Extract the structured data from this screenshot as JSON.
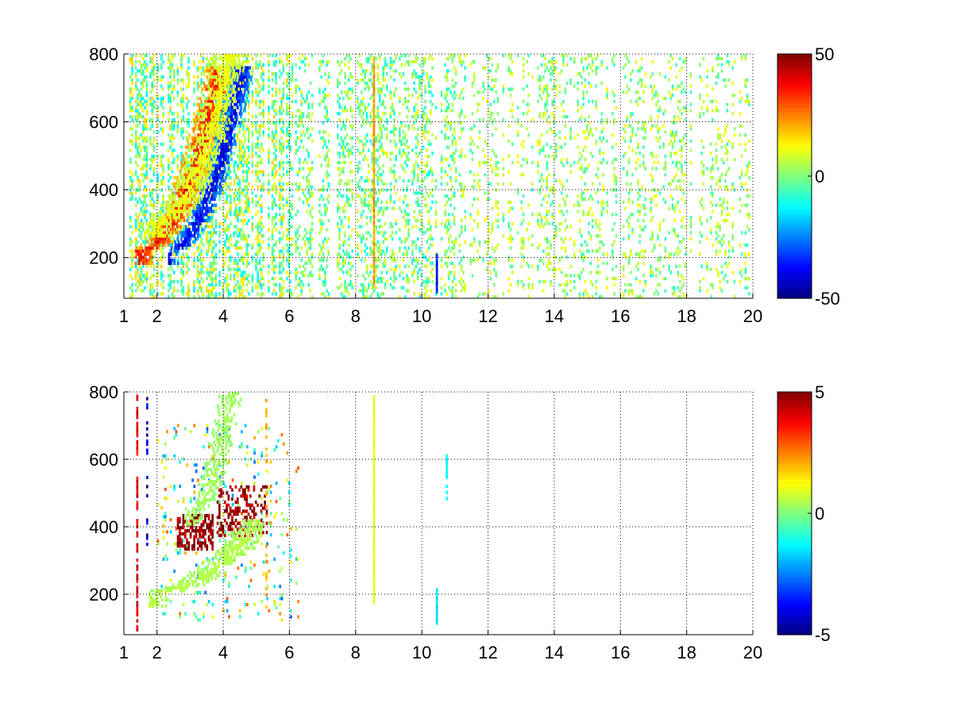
{
  "chart_data": [
    {
      "type": "heatmap",
      "title": "",
      "xlabel": "",
      "ylabel": "",
      "xlim": [
        1,
        20
      ],
      "ylim": [
        80,
        800
      ],
      "xticks": [
        1,
        2,
        4,
        6,
        8,
        10,
        12,
        14,
        16,
        18,
        20
      ],
      "yticks": [
        200,
        400,
        600,
        800
      ],
      "grid": "dotted",
      "colormap": "jet",
      "clim": [
        -50,
        50
      ],
      "colorbar_ticks": [
        50,
        0,
        -50
      ],
      "missing_color": "#ffffff",
      "features": [
        {
          "kind": "band",
          "x_start": 1.5,
          "y_start": 215,
          "x_end": 3.8,
          "y_end": 720,
          "width": 0.45,
          "value": 38,
          "x_min": 1.3,
          "x_max": 5.5,
          "density": 0.95
        },
        {
          "kind": "band",
          "x_start": 2.3,
          "y_start": 215,
          "x_end": 4.5,
          "y_end": 720,
          "width": 0.35,
          "value": -42,
          "x_min": 2.3,
          "x_max": 5.8,
          "density": 0.95
        },
        {
          "kind": "band",
          "x_start": 2.0,
          "y_start": 300,
          "x_end": 4.2,
          "y_end": 800,
          "width": 0.5,
          "value": 12,
          "x_min": 1.5,
          "x_max": 6.0,
          "density": 0.75
        },
        {
          "kind": "vline",
          "x": 8.55,
          "y_min": 110,
          "y_max": 800,
          "value": 22,
          "density": 1.0
        },
        {
          "kind": "vline",
          "x": 10.45,
          "y_min": 95,
          "y_max": 210,
          "value": -35,
          "density": 1.0
        }
      ],
      "noise": [
        {
          "x_min": 1.0,
          "x_max": 6.0,
          "y_min": 80,
          "y_max": 800,
          "density": 0.45,
          "vmin": -15,
          "vmax": 18
        },
        {
          "x_min": 6.0,
          "x_max": 11.0,
          "y_min": 80,
          "y_max": 800,
          "density": 0.28,
          "vmin": -12,
          "vmax": 12
        },
        {
          "x_min": 11.0,
          "x_max": 20.0,
          "y_min": 80,
          "y_max": 800,
          "density": 0.18,
          "vmin": -8,
          "vmax": 14
        }
      ]
    },
    {
      "type": "heatmap",
      "title": "",
      "xlabel": "",
      "ylabel": "",
      "xlim": [
        1,
        20
      ],
      "ylim": [
        80,
        800
      ],
      "xticks": [
        1,
        2,
        4,
        6,
        8,
        10,
        12,
        14,
        16,
        18,
        20
      ],
      "yticks": [
        200,
        400,
        600,
        800
      ],
      "grid": "dotted",
      "colormap": "jet",
      "clim": [
        -5,
        5
      ],
      "colorbar_ticks": [
        5,
        0,
        -5
      ],
      "missing_color": "#ffffff",
      "features": [
        {
          "kind": "blob",
          "x_min": 2.6,
          "x_max": 3.7,
          "y_min": 330,
          "y_max": 430,
          "value": 5,
          "density": 0.55
        },
        {
          "kind": "blob",
          "x_min": 3.8,
          "x_max": 5.3,
          "y_min": 370,
          "y_max": 520,
          "value": 5,
          "density": 0.35
        },
        {
          "kind": "band",
          "x_start": 1.8,
          "y_start": 200,
          "x_end": 4.8,
          "y_end": 380,
          "width": 0.55,
          "value": 0.6,
          "x_min": 1.7,
          "x_max": 5.2,
          "density": 0.8
        },
        {
          "kind": "band",
          "x_start": 3.0,
          "y_start": 440,
          "x_end": 4.2,
          "y_end": 780,
          "width": 0.35,
          "value": 0.4,
          "x_min": 2.8,
          "x_max": 5.8,
          "density": 0.6
        },
        {
          "kind": "vline",
          "x": 8.55,
          "y_min": 170,
          "y_max": 790,
          "value": 1,
          "density": 1.0
        },
        {
          "kind": "vline",
          "x": 10.45,
          "y_min": 110,
          "y_max": 210,
          "value": -1.5,
          "density": 1.0
        },
        {
          "kind": "vline",
          "x": 10.75,
          "y_min": 480,
          "y_max": 610,
          "value": -1.2,
          "density": 0.6
        },
        {
          "kind": "vline",
          "x": 1.4,
          "y_min": 90,
          "y_max": 800,
          "value": 4,
          "density": 0.6
        },
        {
          "kind": "vline",
          "x": 1.7,
          "y_min": 290,
          "y_max": 780,
          "value": -4,
          "density": 0.35
        },
        {
          "kind": "vline",
          "x": 5.3,
          "y_min": 140,
          "y_max": 780,
          "value": 2,
          "density": 0.35
        }
      ],
      "noise": [
        {
          "x_min": 2.0,
          "x_max": 6.3,
          "y_min": 120,
          "y_max": 700,
          "density": 0.08,
          "vmin": -3,
          "vmax": 3
        }
      ]
    }
  ]
}
